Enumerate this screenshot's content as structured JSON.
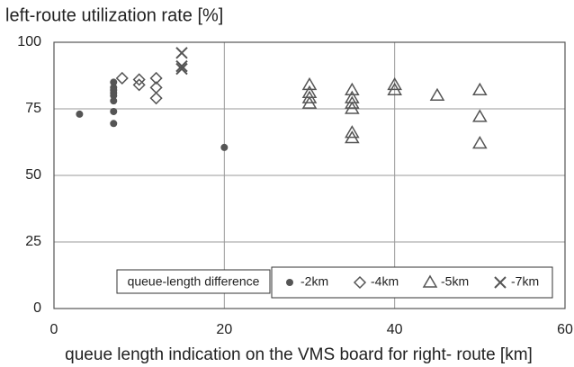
{
  "chart_data": {
    "type": "scatter",
    "title": "left-route utilization rate [%]",
    "x_label": "queue length indication on the VMS board for right- route [km]",
    "legend_title": "queue-length difference",
    "xlim": [
      0,
      60
    ],
    "xticks": [
      0,
      20,
      40,
      60
    ],
    "ylim": [
      0,
      100
    ],
    "yticks": [
      0,
      25,
      50,
      75,
      100
    ],
    "grid": true,
    "legend": "bottom",
    "series": [
      {
        "name": "-2km",
        "marker": "circle",
        "color": "#555555",
        "x": [
          3,
          7,
          7,
          7,
          7,
          7,
          7,
          7,
          7,
          20
        ],
        "values": [
          73,
          85,
          83,
          81,
          80,
          78,
          74,
          69.5,
          82,
          60.5
        ]
      },
      {
        "name": "-4km",
        "marker": "diamond",
        "color": "#555555",
        "x": [
          8,
          10,
          10,
          12,
          12,
          12
        ],
        "values": [
          86.5,
          86,
          84,
          86.5,
          83,
          79
        ]
      },
      {
        "name": "-5km",
        "marker": "triangle",
        "color": "#555555",
        "x": [
          30,
          30,
          30,
          30,
          35,
          35,
          35,
          35,
          35,
          35,
          40,
          40,
          45,
          50,
          50,
          50
        ],
        "values": [
          84,
          81,
          79,
          77,
          82,
          79,
          77,
          75,
          66,
          64,
          84,
          82,
          80,
          82,
          72,
          62
        ]
      },
      {
        "name": "-7km",
        "marker": "x",
        "color": "#555555",
        "x": [
          15,
          15,
          15
        ],
        "values": [
          96,
          91,
          90
        ]
      }
    ]
  }
}
